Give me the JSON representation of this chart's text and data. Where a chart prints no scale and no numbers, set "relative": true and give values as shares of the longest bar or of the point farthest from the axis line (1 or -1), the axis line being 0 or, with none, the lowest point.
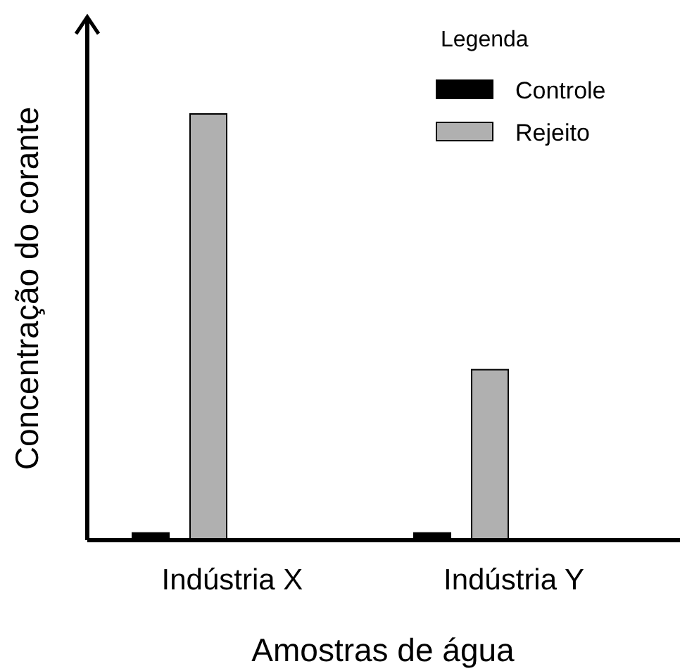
{
  "chart_data": {
    "type": "bar",
    "xlabel": "Amostras de água",
    "ylabel": "Concentração do corante",
    "legend_title": "Legenda",
    "legend": "top right",
    "relative": true,
    "categories": [
      "Indústria X",
      "Indústria Y"
    ],
    "series": [
      {
        "name": "Controle",
        "color": "#000000",
        "values": [
          0.017,
          0.017
        ]
      },
      {
        "name": "Rejeito",
        "color": "#b0b0b0",
        "values": [
          1,
          0.4
        ]
      }
    ]
  }
}
